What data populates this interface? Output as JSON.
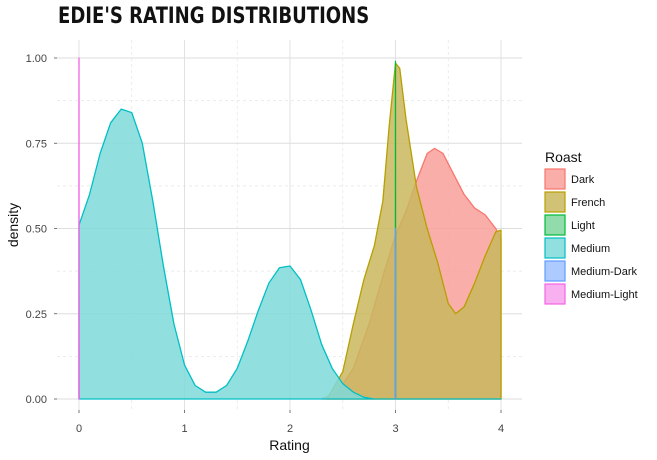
{
  "chart_data": {
    "type": "area",
    "title": "EDIE'S RATING DISTRIBUTIONS",
    "xlabel": "Rating",
    "ylabel": "density",
    "xlim": [
      -0.2,
      4.1
    ],
    "ylim": [
      0,
      1.0
    ],
    "x_ticks": [
      "0",
      "1",
      "2",
      "3",
      "4"
    ],
    "y_ticks": [
      "0.00",
      "0.25",
      "0.50",
      "0.75",
      "1.00"
    ],
    "grid": true,
    "legend": {
      "title": "Roast",
      "position": "right",
      "entries": [
        "Dark",
        "French",
        "Light",
        "Medium",
        "Medium-Dark",
        "Medium-Light"
      ]
    },
    "series": [
      {
        "name": "Dark",
        "color": "#F8766D",
        "fill": "#F8A09A",
        "points": [
          [
            2.3,
            0.0
          ],
          [
            2.45,
            0.02
          ],
          [
            2.6,
            0.09
          ],
          [
            2.75,
            0.22
          ],
          [
            2.9,
            0.38
          ],
          [
            3.0,
            0.48
          ],
          [
            3.1,
            0.55
          ],
          [
            3.2,
            0.64
          ],
          [
            3.3,
            0.72
          ],
          [
            3.37,
            0.735
          ],
          [
            3.45,
            0.72
          ],
          [
            3.55,
            0.66
          ],
          [
            3.65,
            0.6
          ],
          [
            3.75,
            0.56
          ],
          [
            3.85,
            0.54
          ],
          [
            3.95,
            0.5
          ],
          [
            4.0,
            0.47
          ]
        ]
      },
      {
        "name": "French",
        "color": "#B79F00",
        "fill": "#C9B75E",
        "points": [
          [
            2.35,
            0.0
          ],
          [
            2.5,
            0.08
          ],
          [
            2.6,
            0.22
          ],
          [
            2.7,
            0.35
          ],
          [
            2.8,
            0.45
          ],
          [
            2.88,
            0.58
          ],
          [
            2.94,
            0.8
          ],
          [
            3.0,
            0.985
          ],
          [
            3.04,
            0.97
          ],
          [
            3.1,
            0.82
          ],
          [
            3.2,
            0.62
          ],
          [
            3.3,
            0.5
          ],
          [
            3.4,
            0.4
          ],
          [
            3.5,
            0.28
          ],
          [
            3.57,
            0.25
          ],
          [
            3.65,
            0.27
          ],
          [
            3.75,
            0.34
          ],
          [
            3.85,
            0.42
          ],
          [
            3.95,
            0.49
          ],
          [
            4.0,
            0.495
          ]
        ]
      },
      {
        "name": "Light",
        "color": "#00BA38",
        "fill": "#7FD59B",
        "points": [
          [
            2.999,
            0.0
          ],
          [
            3.0,
            0.99
          ],
          [
            3.001,
            0.0
          ]
        ]
      },
      {
        "name": "Medium",
        "color": "#00BFC4",
        "fill": "#7FD9DB",
        "points": [
          [
            0.0,
            0.51
          ],
          [
            0.1,
            0.6
          ],
          [
            0.2,
            0.72
          ],
          [
            0.3,
            0.81
          ],
          [
            0.4,
            0.85
          ],
          [
            0.5,
            0.84
          ],
          [
            0.6,
            0.75
          ],
          [
            0.7,
            0.58
          ],
          [
            0.8,
            0.39
          ],
          [
            0.9,
            0.22
          ],
          [
            1.0,
            0.1
          ],
          [
            1.1,
            0.04
          ],
          [
            1.2,
            0.02
          ],
          [
            1.3,
            0.02
          ],
          [
            1.4,
            0.04
          ],
          [
            1.5,
            0.09
          ],
          [
            1.6,
            0.17
          ],
          [
            1.7,
            0.26
          ],
          [
            1.8,
            0.34
          ],
          [
            1.9,
            0.385
          ],
          [
            2.0,
            0.39
          ],
          [
            2.1,
            0.35
          ],
          [
            2.2,
            0.26
          ],
          [
            2.3,
            0.16
          ],
          [
            2.4,
            0.09
          ],
          [
            2.5,
            0.045
          ],
          [
            2.6,
            0.02
          ],
          [
            2.7,
            0.005
          ],
          [
            2.8,
            0.0
          ],
          [
            4.0,
            0.0
          ]
        ]
      },
      {
        "name": "Medium-Dark",
        "color": "#619CFF",
        "fill": "#A0C2FF",
        "points": [
          [
            2.999,
            0.0
          ],
          [
            3.0,
            0.5
          ],
          [
            3.001,
            0.0
          ]
        ]
      },
      {
        "name": "Medium-Light",
        "color": "#F564E3",
        "fill": "#F8A2EE",
        "points": [
          [
            -0.001,
            0.0
          ],
          [
            0.0,
            1.0
          ],
          [
            0.001,
            0.0
          ]
        ]
      }
    ]
  }
}
